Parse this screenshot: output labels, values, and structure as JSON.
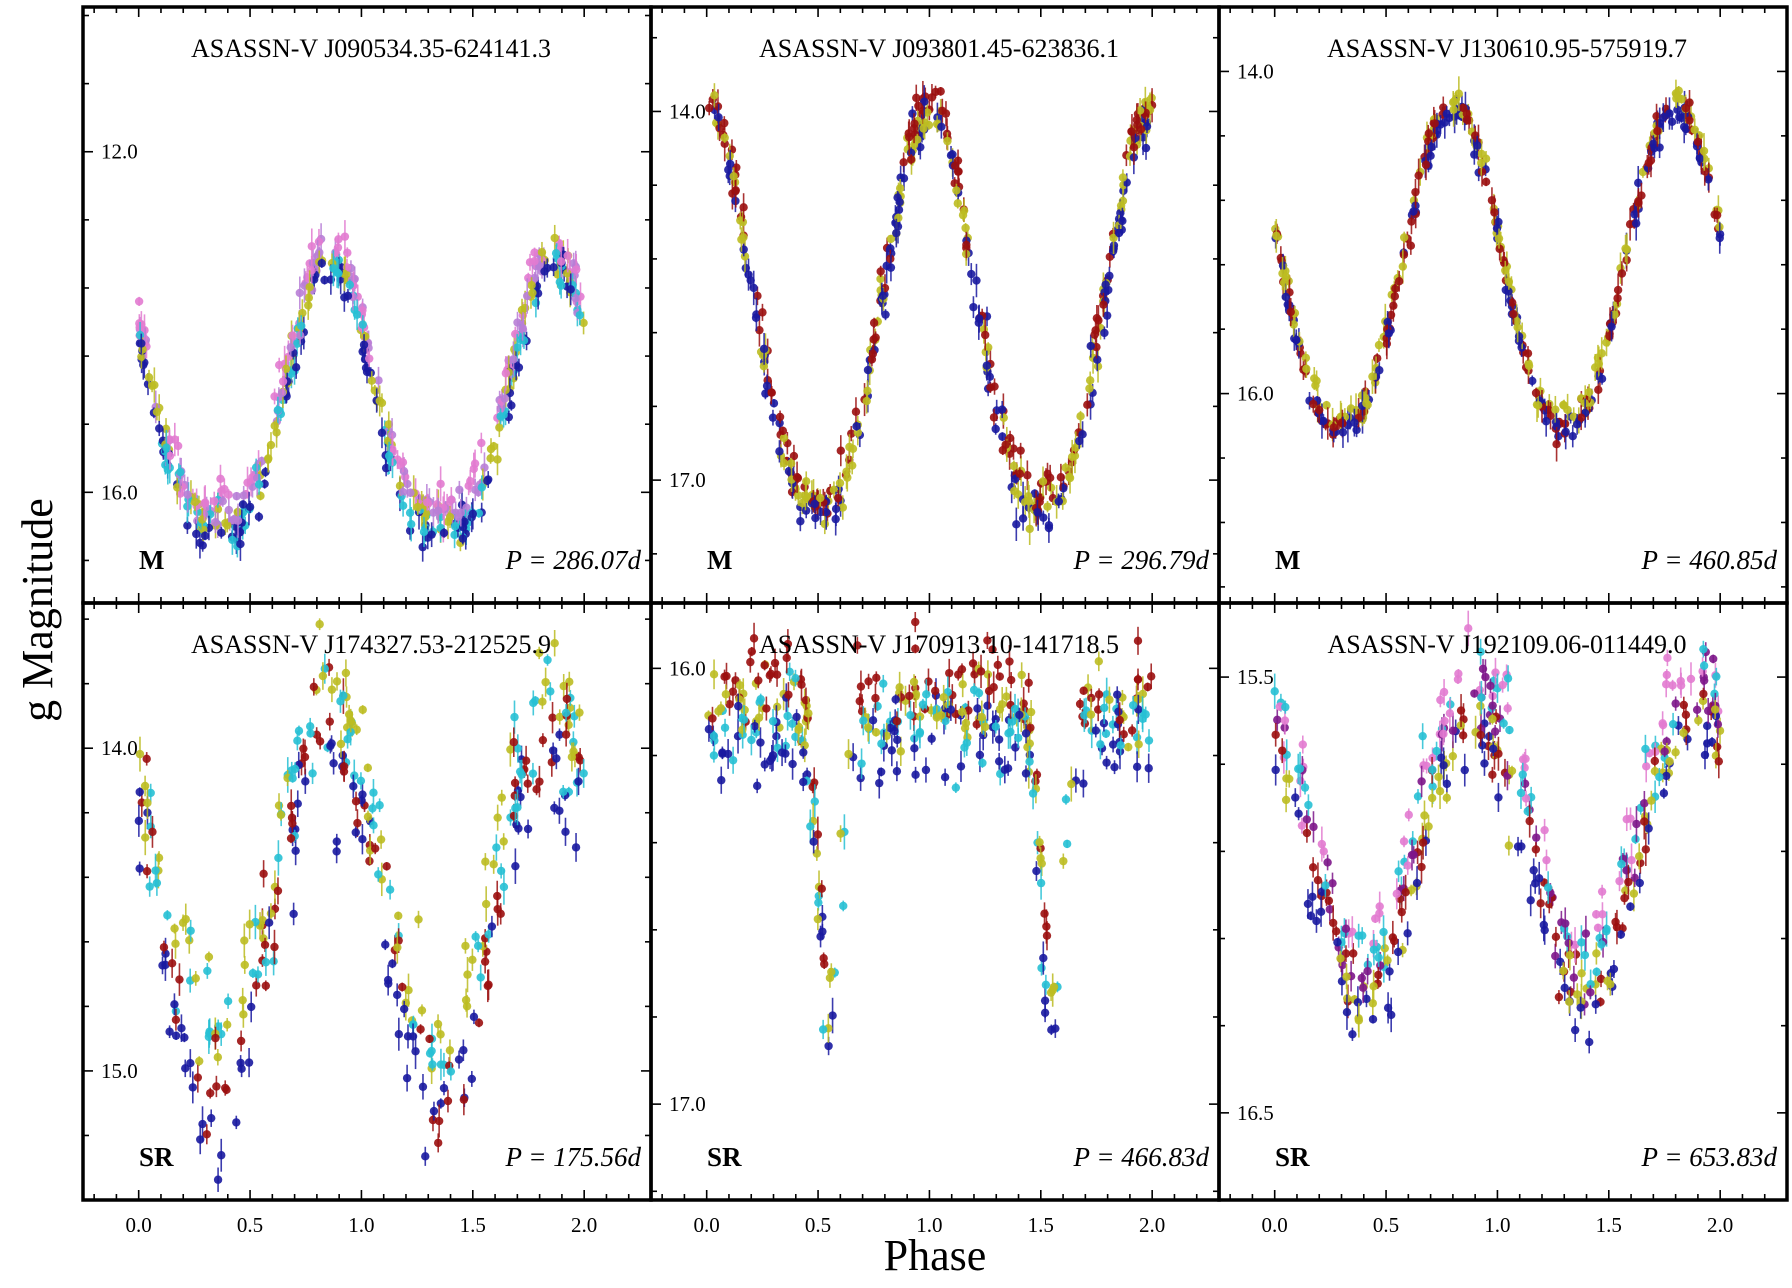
{
  "figure": {
    "xlabel": "Phase",
    "ylabel": "g  Magnitude",
    "x_ticks": [
      "0.0",
      "0.5",
      "1.0",
      "1.5",
      "2.0"
    ],
    "xlim": [
      -0.25,
      2.3
    ],
    "x_tick_values": [
      0,
      0.5,
      1.0,
      1.5,
      2.0
    ]
  },
  "colors": {
    "navy": "#1a1aa0",
    "darkred": "#9b1010",
    "olive": "#bcbc22",
    "cyan": "#27c0d4",
    "pink": "#e27bd0",
    "purple": "#7d168a",
    "orchid": "#b87ed6"
  },
  "chart_data": [
    {
      "type": "scatter",
      "title": "ASASSN-V J090534.35-624141.3",
      "class_label": "M",
      "period_label": "P = 286.07d",
      "ylim": [
        10.3,
        17.3
      ],
      "y_ticks": [
        12.0,
        16.0
      ],
      "y_tick_labels": [
        "12.0",
        "16.0"
      ],
      "series_colors": [
        "pink",
        "orchid",
        "olive",
        "cyan",
        "navy"
      ],
      "light_curve": {
        "min_mag": 16.3,
        "max_mag": 13.2,
        "shape": "pulsating",
        "peak_phase": 0.86,
        "rise_sharpness": 1.6,
        "scatter": 0.25,
        "n_points": 260
      }
    },
    {
      "type": "scatter",
      "title": "ASASSN-V J093801.45-623836.1",
      "class_label": "M",
      "period_label": "P = 296.79d",
      "ylim": [
        13.15,
        18.0
      ],
      "y_ticks": [
        14.0,
        17.0
      ],
      "y_tick_labels": [
        "14.0",
        "17.0"
      ],
      "series_colors": [
        "darkred",
        "olive",
        "navy"
      ],
      "light_curve": {
        "min_mag": 17.2,
        "max_mag": 14.0,
        "shape": "pulsating",
        "peak_phase": 0.0,
        "rise_sharpness": 1.3,
        "scatter": 0.22,
        "n_points": 220
      }
    },
    {
      "type": "scatter",
      "title": "ASASSN-V J130610.95-575919.7",
      "class_label": "M",
      "period_label": "P = 460.85d",
      "ylim": [
        13.6,
        17.3
      ],
      "y_ticks": [
        14.0,
        16.0
      ],
      "y_tick_labels": [
        "14.0",
        "16.0"
      ],
      "series_colors": [
        "olive",
        "darkred",
        "navy"
      ],
      "light_curve": {
        "min_mag": 16.2,
        "max_mag": 14.2,
        "shape": "pulsating",
        "peak_phase": 0.8,
        "rise_sharpness": 1.2,
        "scatter": 0.1,
        "n_points": 200
      }
    },
    {
      "type": "scatter",
      "title": "ASASSN-V J174327.53-212525.9",
      "class_label": "SR",
      "period_label": "P = 175.56d",
      "ylim": [
        13.55,
        15.4
      ],
      "y_ticks": [
        14.0,
        15.0
      ],
      "y_tick_labels": [
        "14.0",
        "15.0"
      ],
      "series_colors": [
        "olive",
        "cyan",
        "darkred",
        "navy"
      ],
      "light_curve": {
        "min_mag": 15.0,
        "max_mag": 13.9,
        "shape": "semiregular",
        "peak_phase": 0.85,
        "rise_sharpness": 1.0,
        "scatter": 0.22,
        "n_points": 170
      }
    },
    {
      "type": "scatter",
      "title": "ASASSN-V J170913.10-141718.5",
      "class_label": "SR",
      "period_label": "P = 466.83d",
      "ylim": [
        15.85,
        17.22
      ],
      "y_ticks": [
        16.0,
        17.0
      ],
      "y_tick_labels": [
        "16.0",
        "17.0"
      ],
      "series_colors": [
        "darkred",
        "olive",
        "cyan",
        "navy"
      ],
      "light_curve": {
        "min_mag": 16.75,
        "max_mag": 16.1,
        "shape": "dips",
        "peak_phase": 0.1,
        "rise_sharpness": 1.0,
        "scatter": 0.12,
        "n_points": 190
      }
    },
    {
      "type": "scatter",
      "title": "ASASSN-V J192109.06-011449.0",
      "class_label": "SR",
      "period_label": "P = 653.83d",
      "ylim": [
        15.33,
        16.7
      ],
      "y_ticks": [
        15.5,
        16.5
      ],
      "y_tick_labels": [
        "15.5",
        "16.5"
      ],
      "series_colors": [
        "pink",
        "cyan",
        "purple",
        "darkred",
        "olive",
        "navy"
      ],
      "light_curve": {
        "min_mag": 16.2,
        "max_mag": 15.55,
        "shape": "pulsating",
        "peak_phase": 0.9,
        "rise_sharpness": 0.9,
        "scatter": 0.1,
        "n_points": 200
      }
    }
  ]
}
